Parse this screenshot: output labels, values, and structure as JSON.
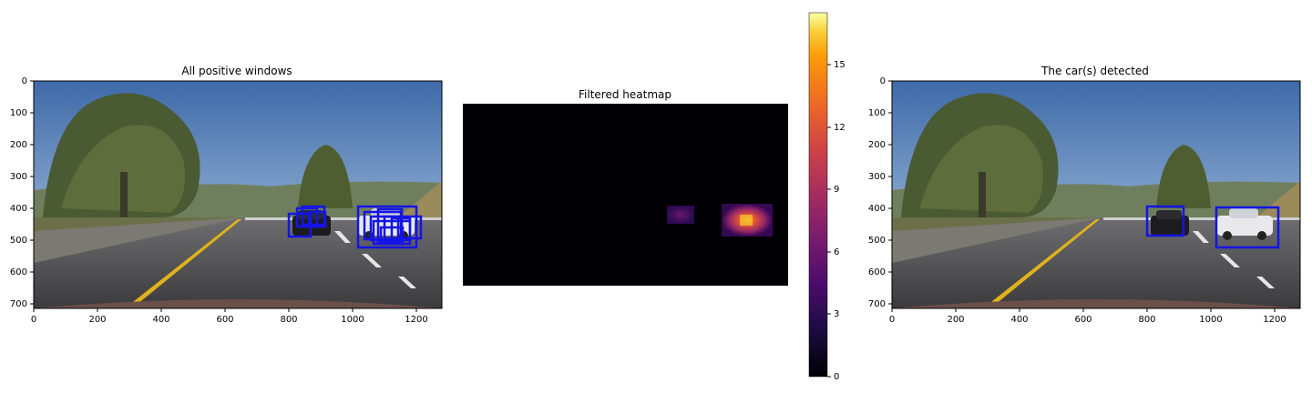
{
  "panels": [
    {
      "title": "All positive windows",
      "x_ticks": [
        "0",
        "200",
        "400",
        "600",
        "800",
        "1000",
        "1200"
      ],
      "y_ticks": [
        "0",
        "100",
        "200",
        "300",
        "400",
        "500",
        "600",
        "700"
      ],
      "box_color": "#1414e6"
    },
    {
      "title": "Filtered heatmap",
      "colorbar_ticks": [
        "0",
        "3",
        "6",
        "9",
        "12",
        "15"
      ],
      "colormap": "inferno"
    },
    {
      "title": "The car(s) detected",
      "x_ticks": [
        "0",
        "200",
        "400",
        "600",
        "800",
        "1000",
        "1200"
      ],
      "y_ticks": [
        "0",
        "100",
        "200",
        "300",
        "400",
        "500",
        "600",
        "700"
      ],
      "box_color": "#1414e6"
    }
  ]
}
